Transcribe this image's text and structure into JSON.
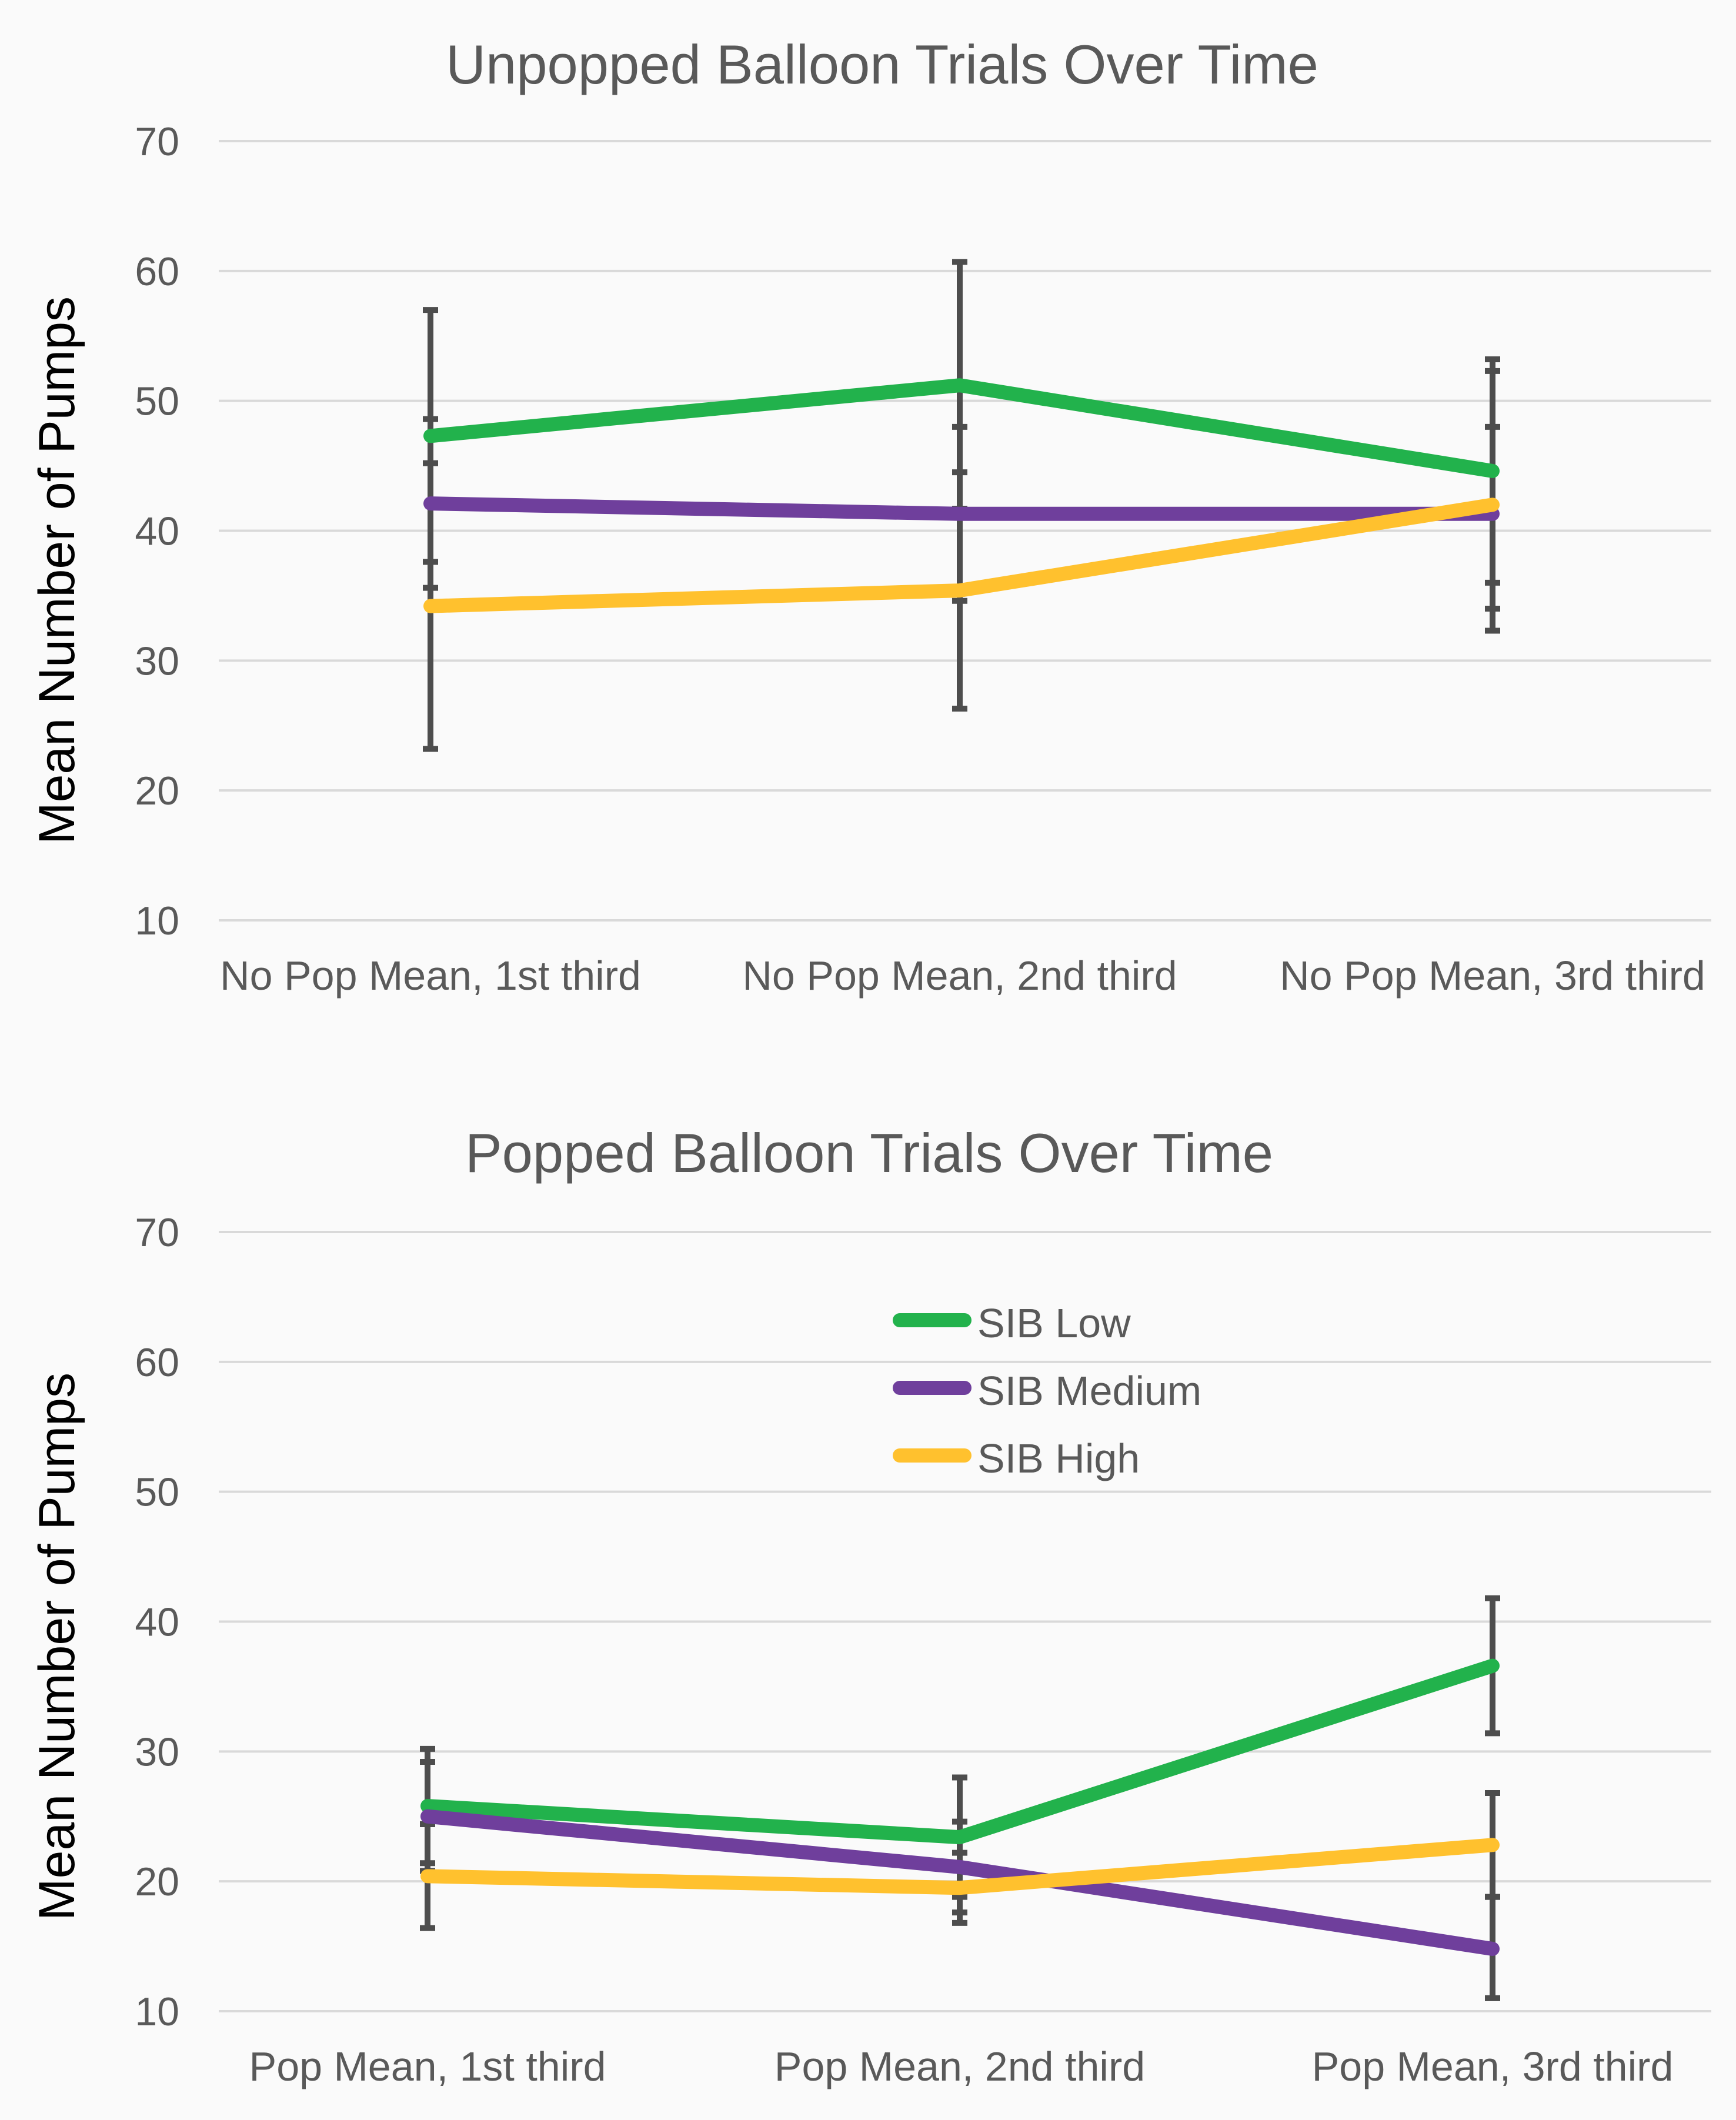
{
  "colors": {
    "background": "#fafafa",
    "text": "#595959",
    "gridline": "#d9d9d9",
    "error_bar": "#4d4d4d",
    "sib_low": "#22b24c",
    "sib_medium": "#6f3f9c",
    "sib_high": "#ffc12e"
  },
  "legend": {
    "items": [
      {
        "label": "SIB Low",
        "color": "#22b24c"
      },
      {
        "label": "SIB Medium",
        "color": "#6f3f9c"
      },
      {
        "label": "SIB High",
        "color": "#ffc12e"
      }
    ]
  },
  "chart_data": [
    {
      "type": "line",
      "title": "Unpopped Balloon Trials Over Time",
      "xlabel": "",
      "ylabel": "Mean Number of Pumps",
      "ylim": [
        10,
        70
      ],
      "yticks": [
        10,
        20,
        30,
        40,
        50,
        60,
        70
      ],
      "grid": true,
      "legend": "none",
      "categories": [
        "No Pop Mean, 1st third",
        "No Pop Mean, 2nd third",
        "No Pop Mean, 3rd third"
      ],
      "series": [
        {
          "name": "SIB Low",
          "color": "#22b24c",
          "values": [
            47.3,
            51.2,
            44.6
          ],
          "error_low": [
            37.6,
            41.7,
            36.0
          ],
          "error_high": [
            57.0,
            60.7,
            53.2
          ]
        },
        {
          "name": "SIB Medium",
          "color": "#6f3f9c",
          "values": [
            42.1,
            41.3,
            41.3
          ],
          "error_low": [
            35.6,
            34.6,
            32.3
          ],
          "error_high": [
            48.6,
            48.0,
            52.3
          ]
        },
        {
          "name": "SIB High",
          "color": "#ffc12e",
          "values": [
            34.2,
            35.4,
            42.0
          ],
          "error_low": [
            23.2,
            26.3,
            34.0
          ],
          "error_high": [
            45.2,
            44.5,
            48.0
          ]
        }
      ]
    },
    {
      "type": "line",
      "title": "Popped Balloon Trials Over Time",
      "xlabel": "",
      "ylabel": "Mean Number of Pumps",
      "ylim": [
        10,
        70
      ],
      "yticks": [
        10,
        20,
        30,
        40,
        50,
        60,
        70
      ],
      "grid": true,
      "legend": "top-center",
      "categories": [
        "Pop Mean, 1st third",
        "Pop Mean, 2nd third",
        "Pop Mean, 3rd third"
      ],
      "series": [
        {
          "name": "SIB Low",
          "color": "#22b24c",
          "values": [
            25.8,
            23.4,
            36.6
          ],
          "error_low": [
            21.4,
            18.8,
            31.4
          ],
          "error_high": [
            30.2,
            28.0,
            41.8
          ]
        },
        {
          "name": "SIB Medium",
          "color": "#6f3f9c",
          "values": [
            25.0,
            21.1,
            14.8
          ],
          "error_low": [
            20.8,
            17.6,
            11.0
          ],
          "error_high": [
            29.2,
            24.6,
            18.8
          ]
        },
        {
          "name": "SIB High",
          "color": "#ffc12e",
          "values": [
            20.4,
            19.5,
            22.8
          ],
          "error_low": [
            16.4,
            16.8,
            18.8
          ],
          "error_high": [
            24.4,
            22.2,
            26.8
          ]
        }
      ]
    }
  ]
}
